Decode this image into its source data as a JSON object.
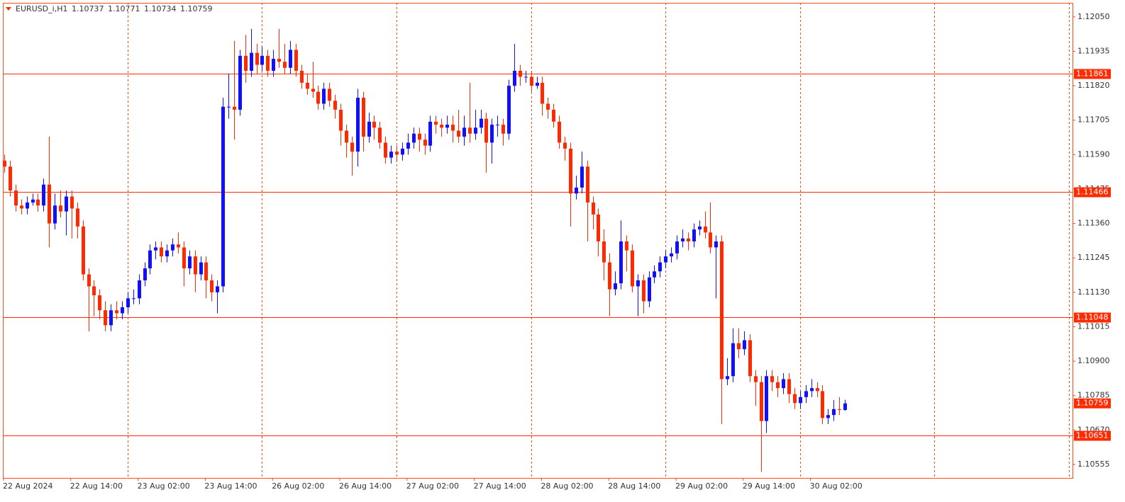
{
  "chart_data": {
    "type": "candlestick",
    "symbol": "EURUSD_i,H1",
    "up_color": "#1010ff",
    "down_color": "#ff2a00",
    "line_color": "#ff2a00",
    "ylim": [
      1.1051,
      1.12097
    ],
    "yticks": [
      {
        "value": 1.1205,
        "label": "1.12050"
      },
      1.11935,
      {
        "value": 1.1182,
        "label": "1.11820"
      },
      1.11705,
      {
        "value": 1.1159,
        "label": "1.11590"
      },
      1.11475,
      {
        "value": 1.1136,
        "label": "1.11360"
      },
      1.11245,
      {
        "value": 1.1113,
        "label": "1.11130"
      },
      1.11015,
      {
        "value": 1.109,
        "label": "1.10900"
      },
      1.10785,
      {
        "value": 1.1067,
        "label": "1.10670"
      },
      1.10555
    ],
    "hlines": [
      1.11861,
      1.11466,
      1.11048,
      1.10651
    ],
    "xtick_labels": [
      "22 Aug 2024",
      "22 Aug 14:00",
      "23 Aug 02:00",
      "23 Aug 14:00",
      "26 Aug 02:00",
      "26 Aug 14:00",
      "27 Aug 02:00",
      "27 Aug 14:00",
      "28 Aug 02:00",
      "28 Aug 14:00",
      "29 Aug 02:00",
      "29 Aug 14:00",
      "30 Aug 02:00"
    ],
    "candles": [
      [
        1.1157,
        1.1159,
        1.1153,
        1.1155
      ],
      [
        1.1155,
        1.1157,
        1.1145,
        1.1147
      ],
      [
        1.1147,
        1.1149,
        1.114,
        1.1142
      ],
      [
        1.1142,
        1.1144,
        1.1139,
        1.1141
      ],
      [
        1.1141,
        1.1145,
        1.1139,
        1.1143
      ],
      [
        1.1143,
        1.1146,
        1.1142,
        1.1144
      ],
      [
        1.1144,
        1.1146,
        1.114,
        1.1142
      ],
      [
        1.1142,
        1.1151,
        1.114,
        1.1149
      ],
      [
        1.1149,
        1.1165,
        1.1128,
        1.1136
      ],
      [
        1.1136,
        1.1146,
        1.1134,
        1.1142
      ],
      [
        1.1142,
        1.1147,
        1.1138,
        1.114
      ],
      [
        1.114,
        1.1147,
        1.1132,
        1.1145
      ],
      [
        1.1145,
        1.1147,
        1.1131,
        1.1141
      ],
      [
        1.1141,
        1.1143,
        1.1131,
        1.1135
      ],
      [
        1.1135,
        1.1137,
        1.1117,
        1.1119
      ],
      [
        1.1119,
        1.1121,
        1.11,
        1.1115
      ],
      [
        1.1115,
        1.1117,
        1.1105,
        1.1112
      ],
      [
        1.1112,
        1.1114,
        1.1104,
        1.1107
      ],
      [
        1.1107,
        1.111,
        1.11,
        1.1102
      ],
      [
        1.1102,
        1.1109,
        1.11,
        1.1107
      ],
      [
        1.1107,
        1.111,
        1.1104,
        1.1106
      ],
      [
        1.1106,
        1.111,
        1.1104,
        1.1108
      ],
      [
        1.1108,
        1.1113,
        1.1106,
        1.1111
      ],
      [
        1.1111,
        1.1114,
        1.1109,
        1.1111
      ],
      [
        1.1111,
        1.1119,
        1.1109,
        1.1117
      ],
      [
        1.1117,
        1.1123,
        1.1115,
        1.1121
      ],
      [
        1.1121,
        1.1129,
        1.1119,
        1.1127
      ],
      [
        1.1127,
        1.113,
        1.1124,
        1.1128
      ],
      [
        1.1128,
        1.113,
        1.1123,
        1.1125
      ],
      [
        1.1125,
        1.1129,
        1.1123,
        1.1127
      ],
      [
        1.1127,
        1.1131,
        1.1125,
        1.1129
      ],
      [
        1.1129,
        1.1133,
        1.1126,
        1.1128
      ],
      [
        1.1128,
        1.113,
        1.1115,
        1.1121
      ],
      [
        1.1121,
        1.1127,
        1.1119,
        1.1125
      ],
      [
        1.1125,
        1.1127,
        1.1113,
        1.1119
      ],
      [
        1.1119,
        1.1125,
        1.1117,
        1.1123
      ],
      [
        1.1123,
        1.1125,
        1.1111,
        1.1117
      ],
      [
        1.1117,
        1.1119,
        1.111,
        1.1113
      ],
      [
        1.1113,
        1.1117,
        1.1106,
        1.1115
      ],
      [
        1.1115,
        1.1178,
        1.1113,
        1.1175
      ],
      [
        1.1175,
        1.1186,
        1.1171,
        1.1175
      ],
      [
        1.1175,
        1.1197,
        1.1164,
        1.1174
      ],
      [
        1.1174,
        1.1194,
        1.1172,
        1.1192
      ],
      [
        1.1192,
        1.1199,
        1.1183,
        1.1187
      ],
      [
        1.1187,
        1.1201,
        1.1185,
        1.1193
      ],
      [
        1.1193,
        1.1196,
        1.1186,
        1.1189
      ],
      [
        1.1189,
        1.1195,
        1.1187,
        1.1192
      ],
      [
        1.1192,
        1.1194,
        1.1185,
        1.1187
      ],
      [
        1.1187,
        1.1194,
        1.1185,
        1.1191
      ],
      [
        1.1191,
        1.1201,
        1.1188,
        1.119
      ],
      [
        1.119,
        1.1196,
        1.1186,
        1.1188
      ],
      [
        1.1188,
        1.1197,
        1.1186,
        1.1194
      ],
      [
        1.1194,
        1.1196,
        1.1185,
        1.1187
      ],
      [
        1.1187,
        1.1189,
        1.1181,
        1.1183
      ],
      [
        1.1183,
        1.1186,
        1.1179,
        1.1181
      ],
      [
        1.1181,
        1.119,
        1.1178,
        1.118
      ],
      [
        1.118,
        1.1182,
        1.1174,
        1.1176
      ],
      [
        1.1176,
        1.1183,
        1.1174,
        1.1181
      ],
      [
        1.1181,
        1.1183,
        1.1175,
        1.1177
      ],
      [
        1.1177,
        1.1179,
        1.1171,
        1.1174
      ],
      [
        1.1174,
        1.1176,
        1.1162,
        1.1167
      ],
      [
        1.1167,
        1.1169,
        1.1158,
        1.1163
      ],
      [
        1.1163,
        1.1165,
        1.1152,
        1.116
      ],
      [
        1.116,
        1.1181,
        1.1155,
        1.1178
      ],
      [
        1.1178,
        1.118,
        1.116,
        1.1165
      ],
      [
        1.1165,
        1.1173,
        1.1163,
        1.117
      ],
      [
        1.117,
        1.1172,
        1.1164,
        1.1168
      ],
      [
        1.1168,
        1.117,
        1.1161,
        1.1163
      ],
      [
        1.1163,
        1.1165,
        1.1156,
        1.1158
      ],
      [
        1.1158,
        1.1162,
        1.1156,
        1.116
      ],
      [
        1.116,
        1.1162,
        1.1157,
        1.1159
      ],
      [
        1.1159,
        1.1163,
        1.1157,
        1.1161
      ],
      [
        1.1161,
        1.1166,
        1.1159,
        1.1163
      ],
      [
        1.1163,
        1.1168,
        1.1161,
        1.1166
      ],
      [
        1.1166,
        1.1168,
        1.116,
        1.1164
      ],
      [
        1.1164,
        1.1166,
        1.1159,
        1.1162
      ],
      [
        1.1162,
        1.1172,
        1.116,
        1.117
      ],
      [
        1.117,
        1.1172,
        1.1166,
        1.1169
      ],
      [
        1.1169,
        1.1171,
        1.1165,
        1.1168
      ],
      [
        1.1168,
        1.1172,
        1.1166,
        1.1169
      ],
      [
        1.1169,
        1.1172,
        1.1163,
        1.1167
      ],
      [
        1.1167,
        1.1174,
        1.1163,
        1.1165
      ],
      [
        1.1165,
        1.1172,
        1.1162,
        1.1168
      ],
      [
        1.1168,
        1.1183,
        1.1163,
        1.1166
      ],
      [
        1.1166,
        1.1174,
        1.1164,
        1.1168
      ],
      [
        1.1168,
        1.1174,
        1.1166,
        1.1171
      ],
      [
        1.1171,
        1.1173,
        1.1153,
        1.1163
      ],
      [
        1.1163,
        1.1171,
        1.1156,
        1.1169
      ],
      [
        1.1169,
        1.1172,
        1.1165,
        1.1169
      ],
      [
        1.1169,
        1.1171,
        1.1162,
        1.1166
      ],
      [
        1.1166,
        1.1184,
        1.1164,
        1.1182
      ],
      [
        1.1182,
        1.1196,
        1.118,
        1.1187
      ],
      [
        1.1187,
        1.1189,
        1.1182,
        1.1185
      ],
      [
        1.1185,
        1.1187,
        1.1183,
        1.1185
      ],
      [
        1.1185,
        1.1187,
        1.118,
        1.1182
      ],
      [
        1.1182,
        1.1185,
        1.1181,
        1.1183
      ],
      [
        1.1183,
        1.1185,
        1.1172,
        1.1176
      ],
      [
        1.1176,
        1.1178,
        1.1171,
        1.1174
      ],
      [
        1.1174,
        1.1176,
        1.1168,
        1.117
      ],
      [
        1.117,
        1.1172,
        1.1161,
        1.1163
      ],
      [
        1.1163,
        1.1165,
        1.1157,
        1.1161
      ],
      [
        1.1161,
        1.1163,
        1.1135,
        1.1146
      ],
      [
        1.1146,
        1.1152,
        1.1144,
        1.1148
      ],
      [
        1.1148,
        1.116,
        1.1146,
        1.1155
      ],
      [
        1.1155,
        1.1157,
        1.113,
        1.1143
      ],
      [
        1.1143,
        1.1145,
        1.1134,
        1.1139
      ],
      [
        1.1139,
        1.1141,
        1.1125,
        1.113
      ],
      [
        1.113,
        1.1134,
        1.1117,
        1.1123
      ],
      [
        1.1123,
        1.1126,
        1.1105,
        1.1114
      ],
      [
        1.1114,
        1.112,
        1.1112,
        1.1116
      ],
      [
        1.1116,
        1.1137,
        1.1114,
        1.113
      ],
      [
        1.113,
        1.1132,
        1.112,
        1.1127
      ],
      [
        1.1127,
        1.1129,
        1.1113,
        1.1115
      ],
      [
        1.1115,
        1.1119,
        1.1105,
        1.1117
      ],
      [
        1.1117,
        1.1119,
        1.1106,
        1.111
      ],
      [
        1.111,
        1.112,
        1.1108,
        1.1118
      ],
      [
        1.1118,
        1.1122,
        1.1116,
        1.112
      ],
      [
        1.112,
        1.1125,
        1.1118,
        1.1123
      ],
      [
        1.1123,
        1.1127,
        1.1121,
        1.1125
      ],
      [
        1.1125,
        1.1128,
        1.1123,
        1.1126
      ],
      [
        1.1126,
        1.1132,
        1.1124,
        1.113
      ],
      [
        1.113,
        1.1134,
        1.1128,
        1.1131
      ],
      [
        1.1131,
        1.1133,
        1.1127,
        1.113
      ],
      [
        1.113,
        1.1136,
        1.1128,
        1.1134
      ],
      [
        1.1134,
        1.1137,
        1.1132,
        1.1135
      ],
      [
        1.1135,
        1.114,
        1.1131,
        1.1133
      ],
      [
        1.1133,
        1.1143,
        1.1126,
        1.1128
      ],
      [
        1.1128,
        1.1132,
        1.1111,
        1.113
      ],
      [
        1.113,
        1.1132,
        1.1069,
        1.1084
      ],
      [
        1.1084,
        1.1091,
        1.1082,
        1.1085
      ],
      [
        1.1085,
        1.1101,
        1.1083,
        1.1096
      ],
      [
        1.1096,
        1.1101,
        1.1091,
        1.1094
      ],
      [
        1.1094,
        1.11,
        1.1092,
        1.1097
      ],
      [
        1.1097,
        1.1099,
        1.1083,
        1.1085
      ],
      [
        1.1085,
        1.1087,
        1.1075,
        1.1083
      ],
      [
        1.1083,
        1.1085,
        1.1053,
        1.107
      ],
      [
        1.107,
        1.1087,
        1.1066,
        1.1085
      ],
      [
        1.1085,
        1.1087,
        1.108,
        1.1083
      ],
      [
        1.1083,
        1.1085,
        1.1078,
        1.1081
      ],
      [
        1.1081,
        1.1086,
        1.1079,
        1.1084
      ],
      [
        1.1084,
        1.1086,
        1.1076,
        1.1079
      ],
      [
        1.1079,
        1.1081,
        1.1074,
        1.1076
      ],
      [
        1.1076,
        1.108,
        1.1074,
        1.1078
      ],
      [
        1.1078,
        1.1082,
        1.1076,
        1.108
      ],
      [
        1.108,
        1.1084,
        1.1078,
        1.1081
      ],
      [
        1.1081,
        1.1083,
        1.1078,
        1.108
      ],
      [
        1.108,
        1.1082,
        1.1069,
        1.1071
      ],
      [
        1.1071,
        1.1074,
        1.1069,
        1.1072
      ],
      [
        1.1072,
        1.1077,
        1.107,
        1.1074
      ],
      [
        1.1074,
        1.1078,
        1.1072,
        1.10737
      ],
      [
        1.10737,
        1.10771,
        1.10734,
        1.10759
      ]
    ]
  }
}
